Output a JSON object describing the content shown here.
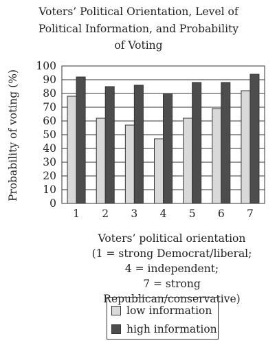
{
  "chart_data": {
    "type": "bar",
    "title_lines": [
      "Voters’ Political Orientation, Level of",
      "Political Information, and Probability",
      "of Voting"
    ],
    "ylabel": "Probability of voting (%)",
    "xlabel_lines": [
      "Voters’ political orientation",
      "(1 = strong Democrat/liberal;",
      "4 = independent;",
      "7 = strong Republican/conservative)"
    ],
    "ylim": [
      0,
      100
    ],
    "yticks": [
      0,
      10,
      20,
      30,
      40,
      50,
      60,
      70,
      80,
      90,
      100
    ],
    "categories": [
      "1",
      "2",
      "3",
      "4",
      "5",
      "6",
      "7"
    ],
    "series": [
      {
        "name": "low information",
        "color": "#d9d9d9",
        "values": [
          78,
          62,
          57,
          47,
          62,
          69,
          82
        ]
      },
      {
        "name": "high information",
        "color": "#4d4d4d",
        "values": [
          92,
          85,
          86,
          80,
          88,
          88,
          94
        ]
      }
    ],
    "grid": true,
    "legend_position": "bottom-center"
  }
}
